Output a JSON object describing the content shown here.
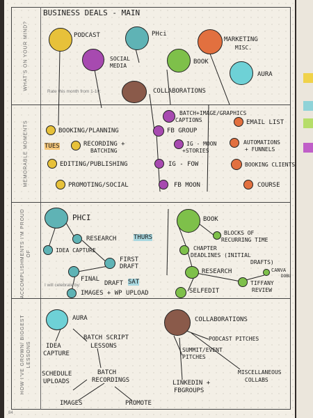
{
  "title": "BUSINESS DEALS - MAIN",
  "page_number": "84",
  "sections": {
    "mind": "WHAT'S ON YOUR MIND?",
    "memorable": "MEMORABLE MOMENTS",
    "accomplishments": "ACCOMPLISHMENTS I'M PROUD OF",
    "growth": "HOW I'VE GROWN/ BIGGEST LESSONS"
  },
  "printed": {
    "rate": "Rate this month from 1-10:",
    "celebrate": "I will celebrate by:"
  },
  "mind_items": {
    "podcast": "PODCAST",
    "phci": "PHci",
    "marketing": "MARKETING",
    "misc": "MISC.",
    "social": "SOCIAL",
    "media": "MEDIA",
    "book": "BOOK",
    "aura": "AURA",
    "collab": "COLLABORATIONS"
  },
  "memorable_items": {
    "booking": "BOOKING/PLANNING",
    "tues": "TUES",
    "recording": "RECORDING +",
    "batching": "BATCHING",
    "editing": "EDITING/PUBLISHING",
    "promoting": "PROMOTING/SOCIAL",
    "batch1": "BATCH+IMAGE/GRAPHICS",
    "batch2": "CAPTIONS",
    "fbgroup": "FB GROUP",
    "igmoon1": "IG - MOON",
    "igmoon2": "+STORIES",
    "igfow": "IG - FOW",
    "fbmoon": "FB MOON",
    "email": "EMAIL LIST",
    "auto1": "AUTOMATIONS",
    "auto2": "+ FUNNELS",
    "bookingclients": "BOOKING CLIENTS",
    "course": "COURSE"
  },
  "accomp_items": {
    "phci": "PHCI",
    "research": "RESEARCH",
    "thurs": "THURS",
    "idea": "IDEA CAPTURE",
    "first1": "FIRST",
    "first2": "DRAFT",
    "final1": "FINAL",
    "final2": "DRAFT",
    "sat": "SAT",
    "images": "IMAGES + WP UPLOAD",
    "book": "BOOK",
    "blocks1": "BLOCKS OF",
    "blocks2": "RECURRING TIME",
    "chapter1": "CHAPTER",
    "chapter2": "DEADLINES (INITIAL",
    "chapter3": "DRAFTS)",
    "research2": "RESEARCH",
    "canva1": "CANVA",
    "canva2": "DOBU",
    "selfedit": "SELFEDIT",
    "tiffany1": "TIFFANY",
    "tiffany2": "REVIEW"
  },
  "growth_items": {
    "aura": "AURA",
    "batchscript1": "BATCH SCRIPT",
    "batchscript2": "LESSONS",
    "idea1": "IDEA",
    "idea2": "CAPTURE",
    "schedule1": "SCHEDULE",
    "schedule2": "UPLOADS",
    "batchrec1": "BATCH",
    "batchrec2": "RECORDINGS",
    "images": "IMAGES",
    "promote": "PROMOTE",
    "collab": "COLLABORATIONS",
    "podcast": "PODCAST PITCHES",
    "summit1": "SUMMIT/EVENT",
    "summit2": "PITCHES",
    "linkedin1": "LINKEDIN +",
    "linkedin2": "FBGROUPS",
    "misc1": "MISCELLANEOUS",
    "misc2": "COLLABS"
  },
  "colors": {
    "yellow": "#e7c13a",
    "teal": "#5fb3b5",
    "orange": "#e2703f",
    "purple": "#a74ab0",
    "green": "#7ec04a",
    "aqua": "#6ed1d6",
    "brown": "#8a5a4a",
    "highlight_blue": "#a9d8e0",
    "highlight_orange": "#f5c77a"
  }
}
